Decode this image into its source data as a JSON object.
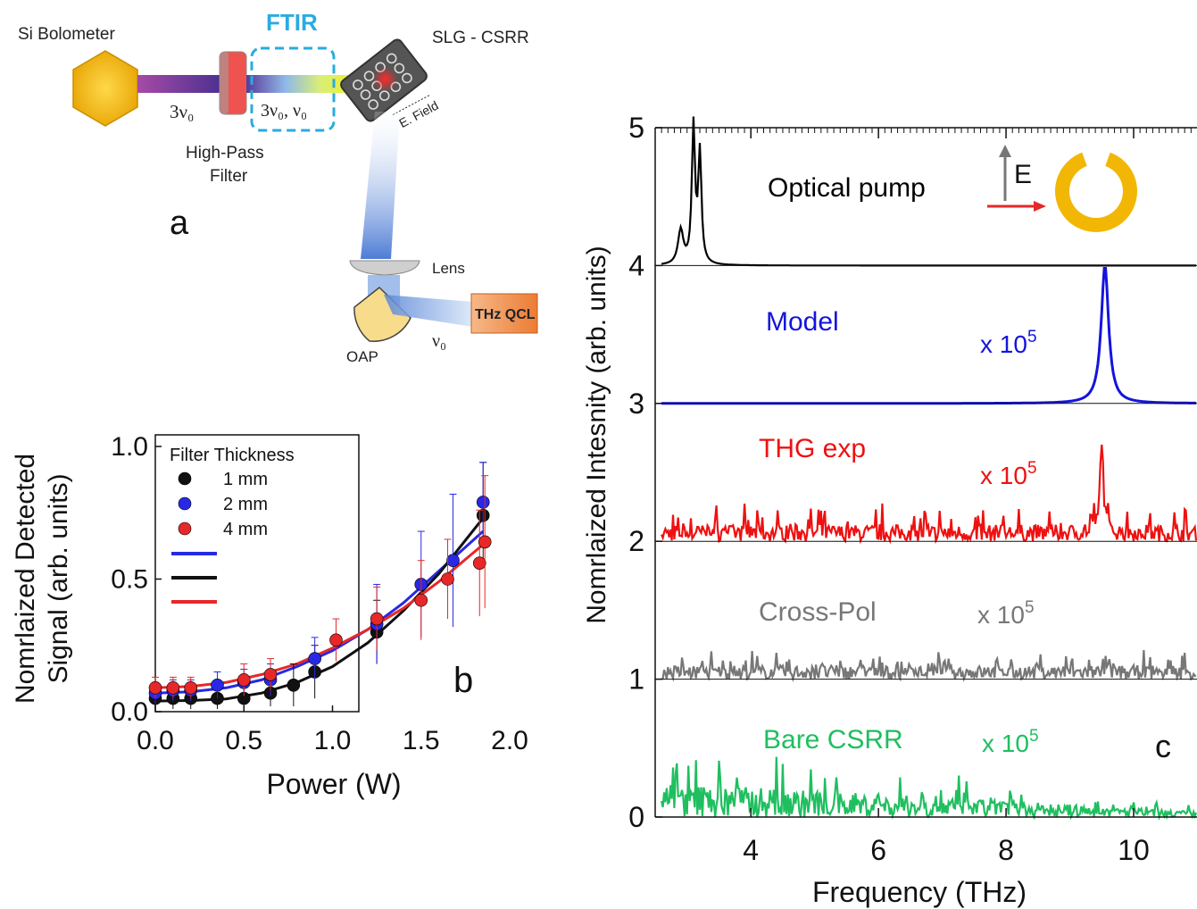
{
  "setup": {
    "panel_label": "a",
    "bolometer_label": "Si Bolometer",
    "ftir_label": "FTIR",
    "sample_label": "SLG - CSRR",
    "beam_label_left": "3ν₀",
    "beam_label_ftir": "3ν₀, ν₀",
    "filter_label_line1": "High-Pass",
    "filter_label_line2": "Filter",
    "efield_label": "E. Field",
    "lens_label": "Lens",
    "oap_label": "OAP",
    "qcl_label": "THz QCL",
    "nu0_label": "ν₀",
    "colors": {
      "bolometer": "#f2b705",
      "ftir": "#29abe2",
      "filter": "#ef5350",
      "qcl": "#f08a3c",
      "lens": "#c8c8c8",
      "oap": "#f7dc8c"
    }
  },
  "chart_data": [
    {
      "panel": "b",
      "type": "scatter",
      "panel_label": "b",
      "xlabel": "Power (W)",
      "ylabel_line1": "Nomrlaized Detected",
      "ylabel_line2": "Signal (arb. units)",
      "xlim": [
        0,
        2.0
      ],
      "ylim": [
        0,
        1.0
      ],
      "xticks": [
        "0.0",
        "0.5",
        "1.0",
        "1.5",
        "2.0"
      ],
      "yticks": [
        "0.0",
        "0.5",
        "1.0"
      ],
      "legend_title": "Filter Thickness",
      "legend_position": "top-left",
      "series": [
        {
          "name": "1 mm",
          "color": "#111111",
          "x": [
            0.0,
            0.1,
            0.2,
            0.35,
            0.5,
            0.65,
            0.78,
            0.9,
            1.25,
            1.85
          ],
          "y": [
            0.05,
            0.05,
            0.05,
            0.05,
            0.05,
            0.07,
            0.1,
            0.15,
            0.3,
            0.74
          ],
          "err": [
            0.05,
            0.04,
            0.04,
            0.04,
            0.04,
            0.05,
            0.08,
            0.1,
            0.12,
            0.2
          ]
        },
        {
          "name": "2 mm",
          "color": "#2828e6",
          "x": [
            0.0,
            0.1,
            0.2,
            0.35,
            0.5,
            0.65,
            0.9,
            1.25,
            1.5,
            1.68,
            1.85
          ],
          "y": [
            0.07,
            0.08,
            0.08,
            0.1,
            0.11,
            0.12,
            0.2,
            0.33,
            0.48,
            0.57,
            0.79
          ],
          "err": [
            0.04,
            0.04,
            0.04,
            0.05,
            0.05,
            0.06,
            0.08,
            0.15,
            0.2,
            0.25,
            0.15
          ]
        },
        {
          "name": "4 mm",
          "color": "#e62828",
          "x": [
            0.0,
            0.1,
            0.2,
            0.5,
            0.65,
            1.02,
            1.25,
            1.5,
            1.65,
            1.83,
            1.86
          ],
          "y": [
            0.09,
            0.09,
            0.09,
            0.12,
            0.14,
            0.27,
            0.35,
            0.42,
            0.5,
            0.56,
            0.64
          ],
          "err": [
            0.04,
            0.04,
            0.04,
            0.06,
            0.06,
            0.08,
            0.12,
            0.15,
            0.15,
            0.2,
            0.25
          ]
        }
      ],
      "fits": [
        {
          "color": "#2828e6",
          "x": [
            0,
            0.2,
            0.4,
            0.6,
            0.8,
            1.0,
            1.2,
            1.4,
            1.6,
            1.85
          ],
          "y": [
            0.07,
            0.075,
            0.09,
            0.12,
            0.17,
            0.23,
            0.31,
            0.41,
            0.53,
            0.68
          ]
        },
        {
          "color": "#111111",
          "x": [
            0,
            0.2,
            0.4,
            0.6,
            0.8,
            1.0,
            1.2,
            1.4,
            1.6,
            1.85
          ],
          "y": [
            0.04,
            0.042,
            0.048,
            0.07,
            0.11,
            0.17,
            0.26,
            0.38,
            0.52,
            0.73
          ]
        },
        {
          "color": "#e62828",
          "x": [
            0,
            0.2,
            0.4,
            0.6,
            0.8,
            1.0,
            1.2,
            1.4,
            1.6,
            1.85
          ],
          "y": [
            0.09,
            0.095,
            0.11,
            0.14,
            0.18,
            0.24,
            0.31,
            0.39,
            0.49,
            0.63
          ]
        }
      ]
    },
    {
      "panel": "c",
      "type": "line",
      "panel_label": "c",
      "xlabel": "Frequency (THz)",
      "ylabel": "Nomrlaized Intesnity (arb. units)",
      "xlim": [
        2.5,
        11.0
      ],
      "ylim": [
        0,
        5
      ],
      "xticks": [
        "4",
        "6",
        "8",
        "10"
      ],
      "yticks": [
        "0",
        "1",
        "2",
        "3",
        "4",
        "5"
      ],
      "series": [
        {
          "name": "Optical pump",
          "color": "#000000",
          "offset": 4,
          "peaks": [
            {
              "x": 2.9,
              "h": 0.25,
              "w": 0.05
            },
            {
              "x": 3.1,
              "h": 1.0,
              "w": 0.03
            },
            {
              "x": 3.2,
              "h": 0.8,
              "w": 0.03
            }
          ]
        },
        {
          "name": "Model",
          "color": "#1414dc",
          "offset": 3,
          "multiplier": "x 10",
          "exponent": "5",
          "peaks": [
            {
              "x": 9.55,
              "h": 1.0,
              "w": 0.07
            }
          ]
        },
        {
          "name": "THG exp",
          "color": "#ee1111",
          "offset": 2,
          "multiplier": "x 10",
          "exponent": "5",
          "peaks": [
            {
              "x": 9.5,
              "h": 0.7,
              "w": 0.03
            }
          ],
          "noise": 0.12
        },
        {
          "name": "Cross-Pol",
          "color": "#777777",
          "offset": 1,
          "multiplier": "x 10",
          "exponent": "5",
          "noise": 0.1
        },
        {
          "name": "Bare CSRR",
          "color": "#1fbf5f",
          "offset": 0,
          "multiplier": "x 10",
          "exponent": "5",
          "noise": 0.18
        }
      ],
      "inset_label": "E",
      "inset_ring_color": "#f2b705"
    }
  ]
}
